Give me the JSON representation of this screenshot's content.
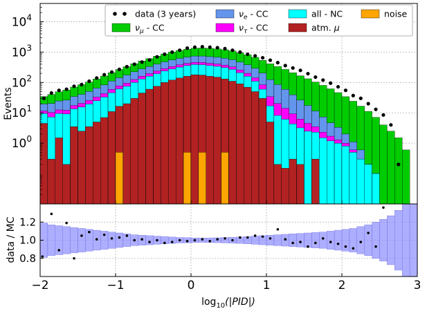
{
  "chart_data": [
    {
      "type": "bar",
      "subtype": "stacked histogram",
      "yscale": "log",
      "ylabel": "Events",
      "ylim": [
        0.01,
        40000
      ],
      "xlim": [
        -2,
        3
      ],
      "bin_start": -2.0,
      "bin_width": 0.1,
      "yticks": [
        {
          "value": 1,
          "label": "10^0",
          "base": "10",
          "exp": "0"
        },
        {
          "value": 10,
          "label": "10^1",
          "base": "10",
          "exp": "1"
        },
        {
          "value": 100,
          "label": "10^2",
          "base": "10",
          "exp": "2"
        },
        {
          "value": 1000,
          "label": "10^3",
          "base": "10",
          "exp": "3"
        },
        {
          "value": 10000,
          "label": "10^4",
          "base": "10",
          "exp": "4"
        }
      ],
      "grid": true,
      "legend_position": "top-right",
      "legend": [
        {
          "key": "data",
          "label": "data (3 years)"
        },
        {
          "key": "numu",
          "label": "- CC",
          "math": "ν_μ"
        },
        {
          "key": "nue",
          "label": "- CC",
          "math": "ν_e"
        },
        {
          "key": "nutau",
          "label": "- CC",
          "math": "ν_τ"
        },
        {
          "key": "nc",
          "label": "all - NC"
        },
        {
          "key": "atm",
          "label": "atm. ",
          "math": "μ"
        },
        {
          "key": "noise",
          "label": "noise"
        }
      ],
      "colors": {
        "noise": "#ffa500",
        "atm": "#b22222",
        "nc": "#00ffff",
        "nutau": "#ff00ff",
        "nue": "#6495ed",
        "numu": "#00cc00",
        "data": "#000000"
      },
      "stack_order": [
        "noise",
        "atm",
        "nc",
        "nutau",
        "nue",
        "numu"
      ],
      "series": [
        {
          "name": "noise",
          "values": [
            0,
            0,
            0,
            0,
            0,
            0,
            0,
            0,
            0,
            0,
            0.5,
            0,
            0,
            0,
            0,
            0,
            0,
            0,
            0,
            0.5,
            0,
            0.5,
            0,
            0,
            0.5,
            0,
            0,
            0,
            0,
            0,
            0,
            0,
            0,
            0,
            0,
            0,
            0,
            0,
            0,
            0,
            0,
            0,
            0,
            0,
            0,
            0,
            0,
            0,
            0,
            0
          ]
        },
        {
          "name": "atm. μ",
          "values": [
            4.5,
            0.3,
            1.5,
            0.2,
            3.5,
            2.5,
            3.5,
            5,
            7,
            11,
            16,
            20,
            30,
            45,
            60,
            75,
            100,
            120,
            140,
            160,
            180,
            175,
            160,
            150,
            130,
            110,
            90,
            70,
            50,
            30,
            5,
            0.2,
            0.15,
            0.3,
            0.2,
            0,
            0.3,
            0,
            0,
            0,
            0,
            0,
            0,
            0,
            0,
            0,
            0,
            0,
            0,
            0
          ]
        },
        {
          "name": "all - NC",
          "values": [
            5,
            7,
            8,
            9,
            10,
            13,
            16,
            20,
            26,
            35,
            45,
            55,
            70,
            85,
            100,
            120,
            140,
            160,
            180,
            200,
            210,
            210,
            200,
            190,
            180,
            160,
            120,
            90,
            60,
            30,
            12,
            8,
            6,
            4,
            3,
            2.5,
            2,
            1.5,
            1.2,
            1,
            0.8,
            0.5,
            0.3,
            0.2,
            0.1,
            0,
            0,
            0,
            0,
            0
          ]
        },
        {
          "name": "ν_τ - CC",
          "values": [
            2,
            3,
            3,
            3,
            4,
            5,
            6,
            8,
            10,
            13,
            16,
            20,
            25,
            30,
            36,
            42,
            48,
            55,
            60,
            65,
            70,
            70,
            68,
            65,
            60,
            55,
            48,
            40,
            32,
            24,
            17,
            12,
            8,
            5,
            3,
            2,
            1.2,
            0.8,
            0.5,
            0.3,
            0.2,
            0.1,
            0,
            0,
            0,
            0,
            0,
            0,
            0,
            0
          ]
        },
        {
          "name": "ν_e - CC",
          "values": [
            8,
            10,
            12,
            14,
            17,
            20,
            25,
            32,
            40,
            52,
            65,
            80,
            100,
            120,
            140,
            165,
            190,
            215,
            240,
            260,
            280,
            285,
            280,
            270,
            255,
            235,
            210,
            180,
            150,
            120,
            90,
            65,
            45,
            30,
            20,
            13,
            8,
            5,
            3,
            2,
            1,
            0.5,
            0.3,
            0,
            0,
            0,
            0,
            0,
            0,
            0
          ]
        },
        {
          "name": "ν_μ - CC",
          "values": [
            15,
            20,
            25,
            30,
            36,
            44,
            53,
            65,
            80,
            100,
            125,
            155,
            190,
            230,
            275,
            330,
            390,
            450,
            510,
            560,
            600,
            620,
            620,
            600,
            570,
            530,
            480,
            430,
            380,
            330,
            290,
            250,
            210,
            170,
            140,
            115,
            92,
            73,
            57,
            43,
            32,
            23,
            16,
            11,
            7,
            4,
            2.5,
            1.5,
            0.6,
            0
          ]
        },
        {
          "name": "data (3 years)",
          "values": [
            30,
            45,
            55,
            60,
            75,
            85,
            110,
            140,
            180,
            220,
            270,
            330,
            400,
            470,
            550,
            700,
            850,
            1000,
            1150,
            1350,
            1450,
            1500,
            1450,
            1400,
            1300,
            1150,
            1000,
            850,
            750,
            650,
            540,
            450,
            360,
            300,
            250,
            195,
            150,
            120,
            95,
            72,
            55,
            37,
            30,
            20,
            13,
            8.5,
            4,
            0.2,
            0,
            0
          ]
        }
      ]
    },
    {
      "type": "bar",
      "subtype": "ratio band with points",
      "ylabel": "data / MC",
      "xlabel": "log10(|PID|)",
      "xlabel_parts": {
        "func": "log",
        "sub": "10",
        "arg": "|PID|"
      },
      "ylim": [
        0.6,
        1.4
      ],
      "xlim": [
        -2,
        3
      ],
      "yticks": [
        "0.8",
        "1.0",
        "1.2"
      ],
      "xticks": [
        "−2",
        "−1",
        "0",
        "1",
        "2",
        "3"
      ],
      "band_color": "#8c8cff",
      "band_halfwidth": [
        0.19,
        0.17,
        0.16,
        0.15,
        0.14,
        0.13,
        0.12,
        0.11,
        0.1,
        0.09,
        0.08,
        0.07,
        0.06,
        0.055,
        0.05,
        0.045,
        0.04,
        0.035,
        0.03,
        0.028,
        0.025,
        0.024,
        0.025,
        0.027,
        0.03,
        0.032,
        0.035,
        0.04,
        0.045,
        0.05,
        0.055,
        0.06,
        0.065,
        0.07,
        0.075,
        0.08,
        0.085,
        0.09,
        0.1,
        0.11,
        0.12,
        0.13,
        0.15,
        0.17,
        0.2,
        0.23,
        0.27,
        0.33,
        0.5,
        0.5
      ],
      "ratio_points": [
        {
          "x": -1.97,
          "y": 0.82
        },
        {
          "x": -1.85,
          "y": 1.29
        },
        {
          "x": -1.75,
          "y": 0.89
        },
        {
          "x": -1.65,
          "y": 1.19
        },
        {
          "x": -1.55,
          "y": 0.8
        },
        {
          "x": -1.45,
          "y": 1.05
        },
        {
          "x": -1.35,
          "y": 1.09
        },
        {
          "x": -1.25,
          "y": 1.01
        },
        {
          "x": -1.15,
          "y": 1.06
        },
        {
          "x": -1.05,
          "y": 1.02
        },
        {
          "x": -0.95,
          "y": 1.03
        },
        {
          "x": -0.85,
          "y": 1.05
        },
        {
          "x": -0.75,
          "y": 1.0
        },
        {
          "x": -0.65,
          "y": 1.01
        },
        {
          "x": -0.55,
          "y": 0.98
        },
        {
          "x": -0.45,
          "y": 1.0
        },
        {
          "x": -0.35,
          "y": 0.97
        },
        {
          "x": -0.25,
          "y": 0.98
        },
        {
          "x": -0.15,
          "y": 1.0
        },
        {
          "x": -0.05,
          "y": 0.99
        },
        {
          "x": 0.05,
          "y": 1.0
        },
        {
          "x": 0.15,
          "y": 1.01
        },
        {
          "x": 0.25,
          "y": 0.99
        },
        {
          "x": 0.35,
          "y": 1.01
        },
        {
          "x": 0.45,
          "y": 1.02
        },
        {
          "x": 0.55,
          "y": 1.0
        },
        {
          "x": 0.65,
          "y": 1.03
        },
        {
          "x": 0.75,
          "y": 1.03
        },
        {
          "x": 0.85,
          "y": 1.05
        },
        {
          "x": 0.95,
          "y": 1.04
        },
        {
          "x": 1.05,
          "y": 1.02
        },
        {
          "x": 1.15,
          "y": 1.12
        },
        {
          "x": 1.25,
          "y": 1.01
        },
        {
          "x": 1.35,
          "y": 0.97
        },
        {
          "x": 1.45,
          "y": 0.98
        },
        {
          "x": 1.55,
          "y": 0.93
        },
        {
          "x": 1.65,
          "y": 0.97
        },
        {
          "x": 1.75,
          "y": 1.02
        },
        {
          "x": 1.85,
          "y": 0.98
        },
        {
          "x": 1.95,
          "y": 0.96
        },
        {
          "x": 2.05,
          "y": 0.93
        },
        {
          "x": 2.15,
          "y": 0.91
        },
        {
          "x": 2.25,
          "y": 0.98
        },
        {
          "x": 2.35,
          "y": 1.08
        },
        {
          "x": 2.45,
          "y": 0.93
        },
        {
          "x": 2.55,
          "y": 1.36
        }
      ]
    }
  ]
}
